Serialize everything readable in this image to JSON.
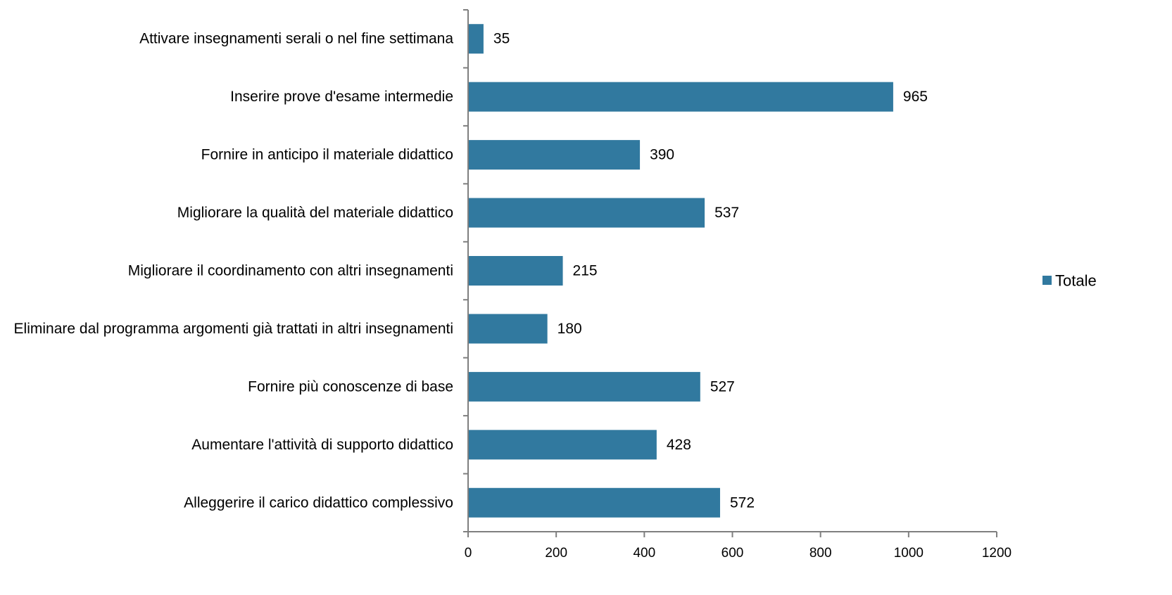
{
  "chart_data": {
    "type": "bar",
    "orientation": "horizontal",
    "categories": [
      "Attivare insegnamenti serali o nel fine settimana",
      "Inserire prove d'esame intermedie",
      "Fornire in anticipo il materiale didattico",
      "Migliorare la qualità del materiale didattico",
      "Migliorare il coordinamento con altri insegnamenti",
      "Eliminare dal programma argomenti già trattati in altri insegnamenti",
      "Fornire più conoscenze di base",
      "Aumentare l'attività di supporto didattico",
      "Alleggerire il carico didattico complessivo"
    ],
    "series": [
      {
        "name": "Totale",
        "values": [
          35,
          965,
          390,
          537,
          215,
          180,
          527,
          428,
          572
        ],
        "color": "#31799f"
      }
    ],
    "xlim": [
      0,
      1200
    ],
    "xticks": [
      "0",
      "200",
      "400",
      "600",
      "800",
      "1000",
      "1200"
    ],
    "grid": false,
    "legend_position": "right",
    "title": "",
    "xlabel": "",
    "ylabel": ""
  }
}
